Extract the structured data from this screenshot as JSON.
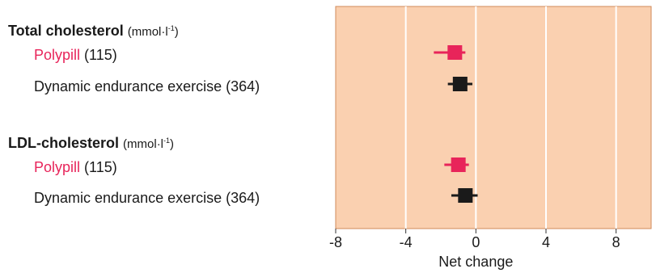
{
  "colors": {
    "panel": "#fad0b0",
    "panel_border": "#d08a5a",
    "grid": "#ffffff",
    "polypill": "#e8245a",
    "exercise": "#1a1a1a"
  },
  "groups": [
    {
      "title": "Total cholesterol",
      "unit": "(mmol·l",
      "unit_sup": "-1",
      "unit_close": ")"
    },
    {
      "title": "LDL-cholesterol",
      "unit": "(mmol·l",
      "unit_sup": "-1",
      "unit_close": ")"
    }
  ],
  "items": [
    {
      "name": "Polypill",
      "count": "(115)"
    },
    {
      "name": "Dynamic endurance exercise",
      "count": "(364)"
    },
    {
      "name": "Polypill",
      "count": "(115)"
    },
    {
      "name": "Dynamic endurance exercise",
      "count": "(364)"
    }
  ],
  "chart_data": {
    "type": "forest",
    "xlabel": "Net change",
    "xlim": [
      -8,
      10
    ],
    "ticks": [
      -8,
      -4,
      0,
      4,
      8
    ],
    "tick_labels": [
      "-8",
      "-4",
      "0",
      "4",
      "8"
    ],
    "grid": true,
    "series": [
      {
        "group": "Total cholesterol",
        "name": "Polypill",
        "n": 115,
        "estimate": -1.2,
        "ci": [
          -2.4,
          -0.6
        ]
      },
      {
        "group": "Total cholesterol",
        "name": "Dynamic endurance exercise",
        "n": 364,
        "estimate": -0.9,
        "ci": [
          -1.6,
          -0.2
        ]
      },
      {
        "group": "LDL-cholesterol",
        "name": "Polypill",
        "n": 115,
        "estimate": -1.0,
        "ci": [
          -1.8,
          -0.4
        ]
      },
      {
        "group": "LDL-cholesterol",
        "name": "Dynamic endurance exercise",
        "n": 364,
        "estimate": -0.6,
        "ci": [
          -1.4,
          0.1
        ]
      }
    ]
  }
}
